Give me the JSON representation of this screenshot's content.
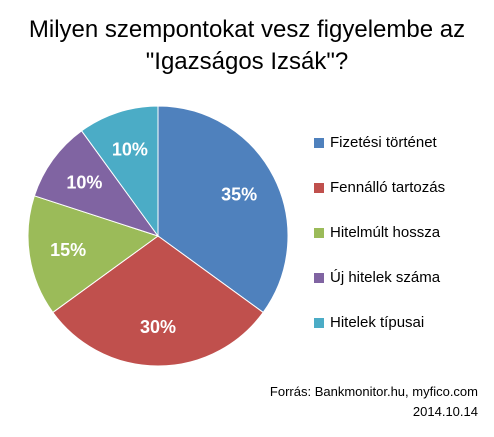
{
  "chart_data": {
    "type": "pie",
    "title_lines": [
      "Milyen szempontokat vesz figyelembe az",
      "\"Igazságos Izsák\"?"
    ],
    "categories": [
      "Fizetési történet",
      "Fennálló tartozás",
      "Hitelmúlt hossza",
      "Új hitelek száma",
      "Hitelek típusai"
    ],
    "values": [
      35,
      30,
      15,
      10,
      10
    ],
    "labels": [
      "35%",
      "30%",
      "15%",
      "10%",
      "10%"
    ],
    "colors": [
      "#4F81BD",
      "#C0504D",
      "#9BBB59",
      "#8064A2",
      "#4BACC6"
    ],
    "legend_position": "right"
  },
  "source": {
    "line1": "Forrás: Bankmonitor.hu,  myfico.com",
    "line2": "2014.10.14"
  }
}
